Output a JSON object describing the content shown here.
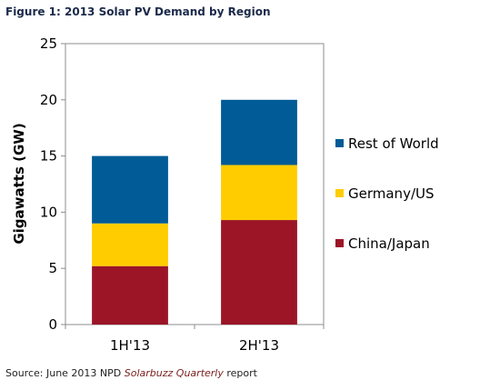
{
  "figure_title": "Figure 1: 2013 Solar PV Demand by Region",
  "source": {
    "prefix": "Source: June 2013 NPD ",
    "publication": "Solarbuzz Quarterly",
    "suffix": " report"
  },
  "colors": {
    "china_japan": "#9b1527",
    "germany_us": "#ffcc00",
    "rest_of_world": "#005b96",
    "plot_border": "#8c8c8c"
  },
  "chart_data": {
    "type": "bar",
    "stacked": true,
    "title": "",
    "xlabel": "",
    "ylabel": "Gigawatts (GW)",
    "ylim": [
      0,
      25
    ],
    "yticks": [
      0,
      5,
      10,
      15,
      20,
      25
    ],
    "categories": [
      "1H'13",
      "2H'13"
    ],
    "series": [
      {
        "name": "China/Japan",
        "values": [
          5.2,
          9.3
        ]
      },
      {
        "name": "Germany/US",
        "values": [
          3.8,
          4.9
        ]
      },
      {
        "name": "Rest of World",
        "values": [
          6.0,
          5.8
        ]
      }
    ],
    "legend": "right",
    "legend_order": [
      "Rest of World",
      "Germany/US",
      "China/Japan"
    ],
    "grid": false
  }
}
